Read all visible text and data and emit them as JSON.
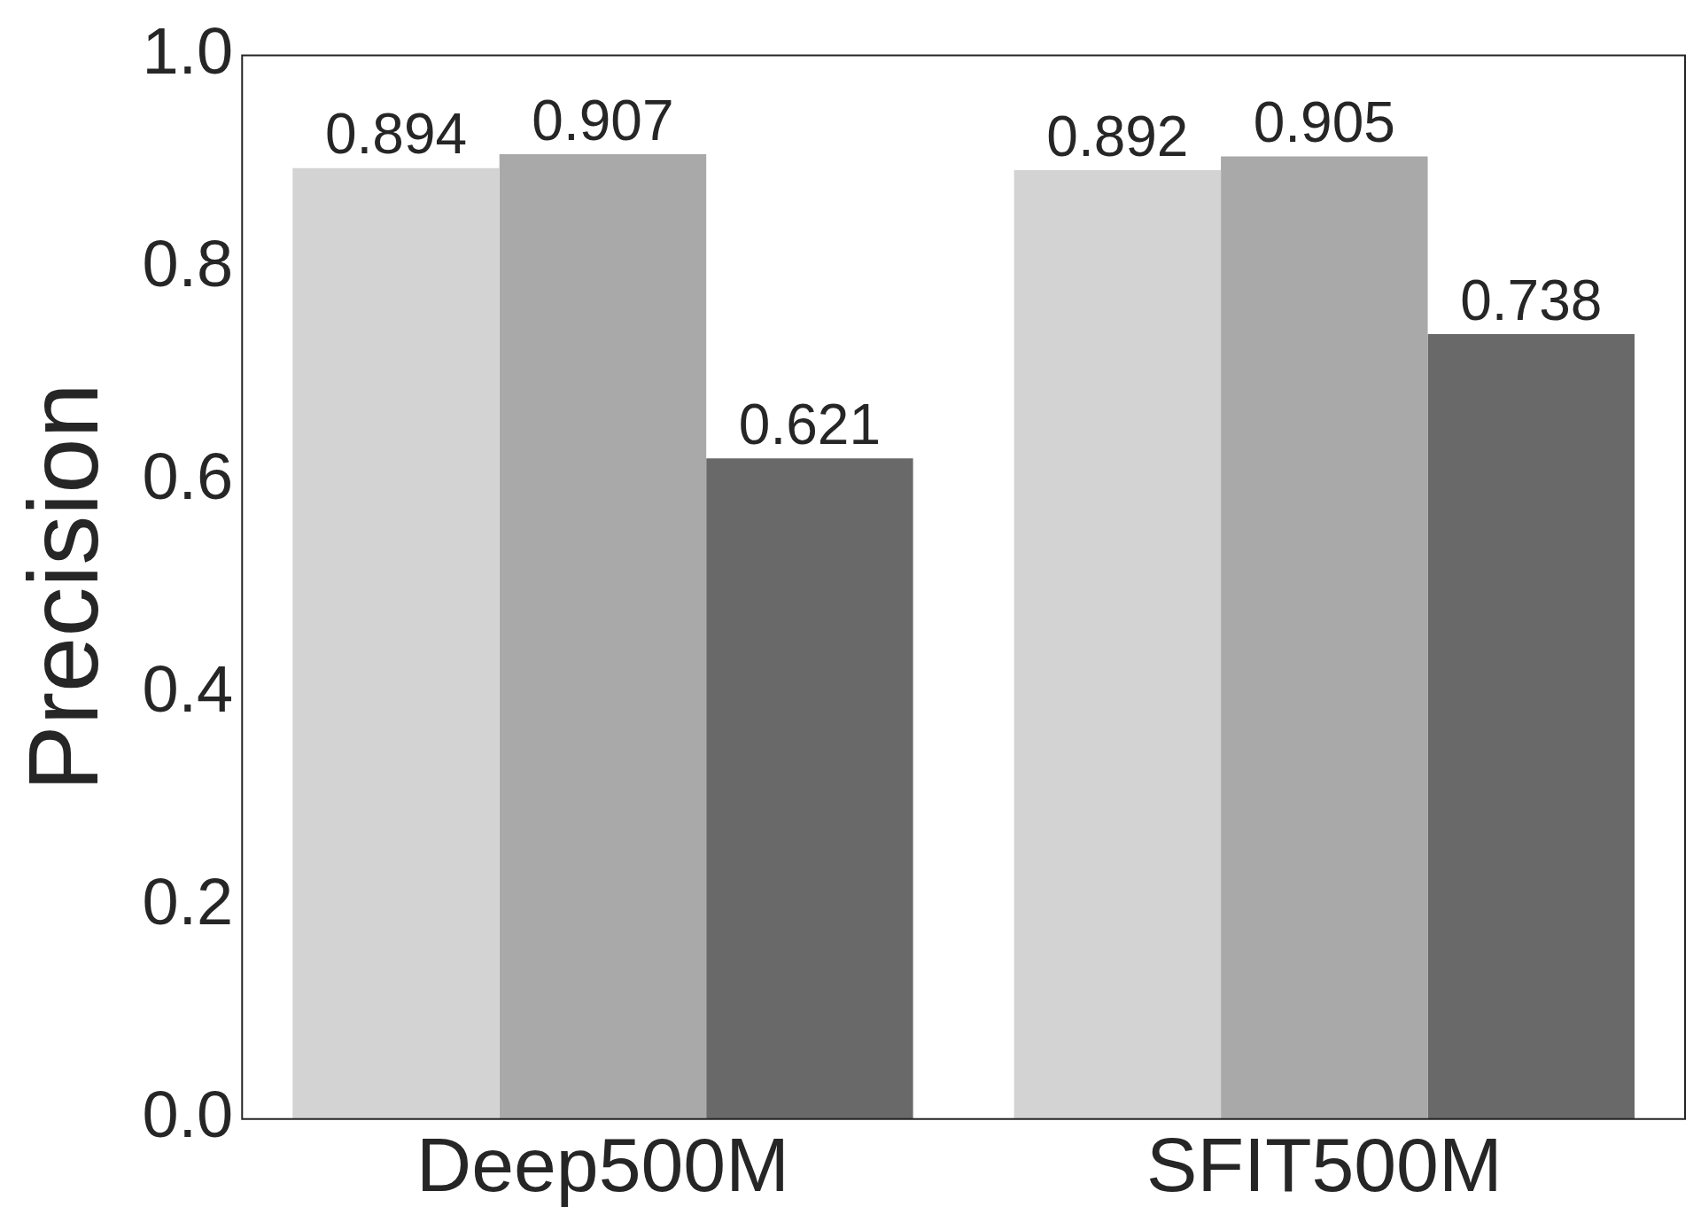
{
  "chart_data": {
    "type": "bar",
    "ylabel": "Precision",
    "categories": [
      "Deep500M",
      "SFIT500M"
    ],
    "series": [
      {
        "color": "#d3d3d3",
        "values": [
          0.894,
          0.892
        ]
      },
      {
        "color": "#a9a9a9",
        "values": [
          0.907,
          0.905
        ]
      },
      {
        "color": "#696969",
        "values": [
          0.621,
          0.738
        ]
      }
    ],
    "ylim": [
      0,
      1.0
    ],
    "yticks": [
      {
        "value": 0,
        "label": "0.0"
      },
      0.2,
      0.4,
      0.6,
      0.8,
      {
        "value": 1,
        "label": "1.0"
      }
    ],
    "grid": false,
    "legend": false,
    "data_labels": true
  }
}
